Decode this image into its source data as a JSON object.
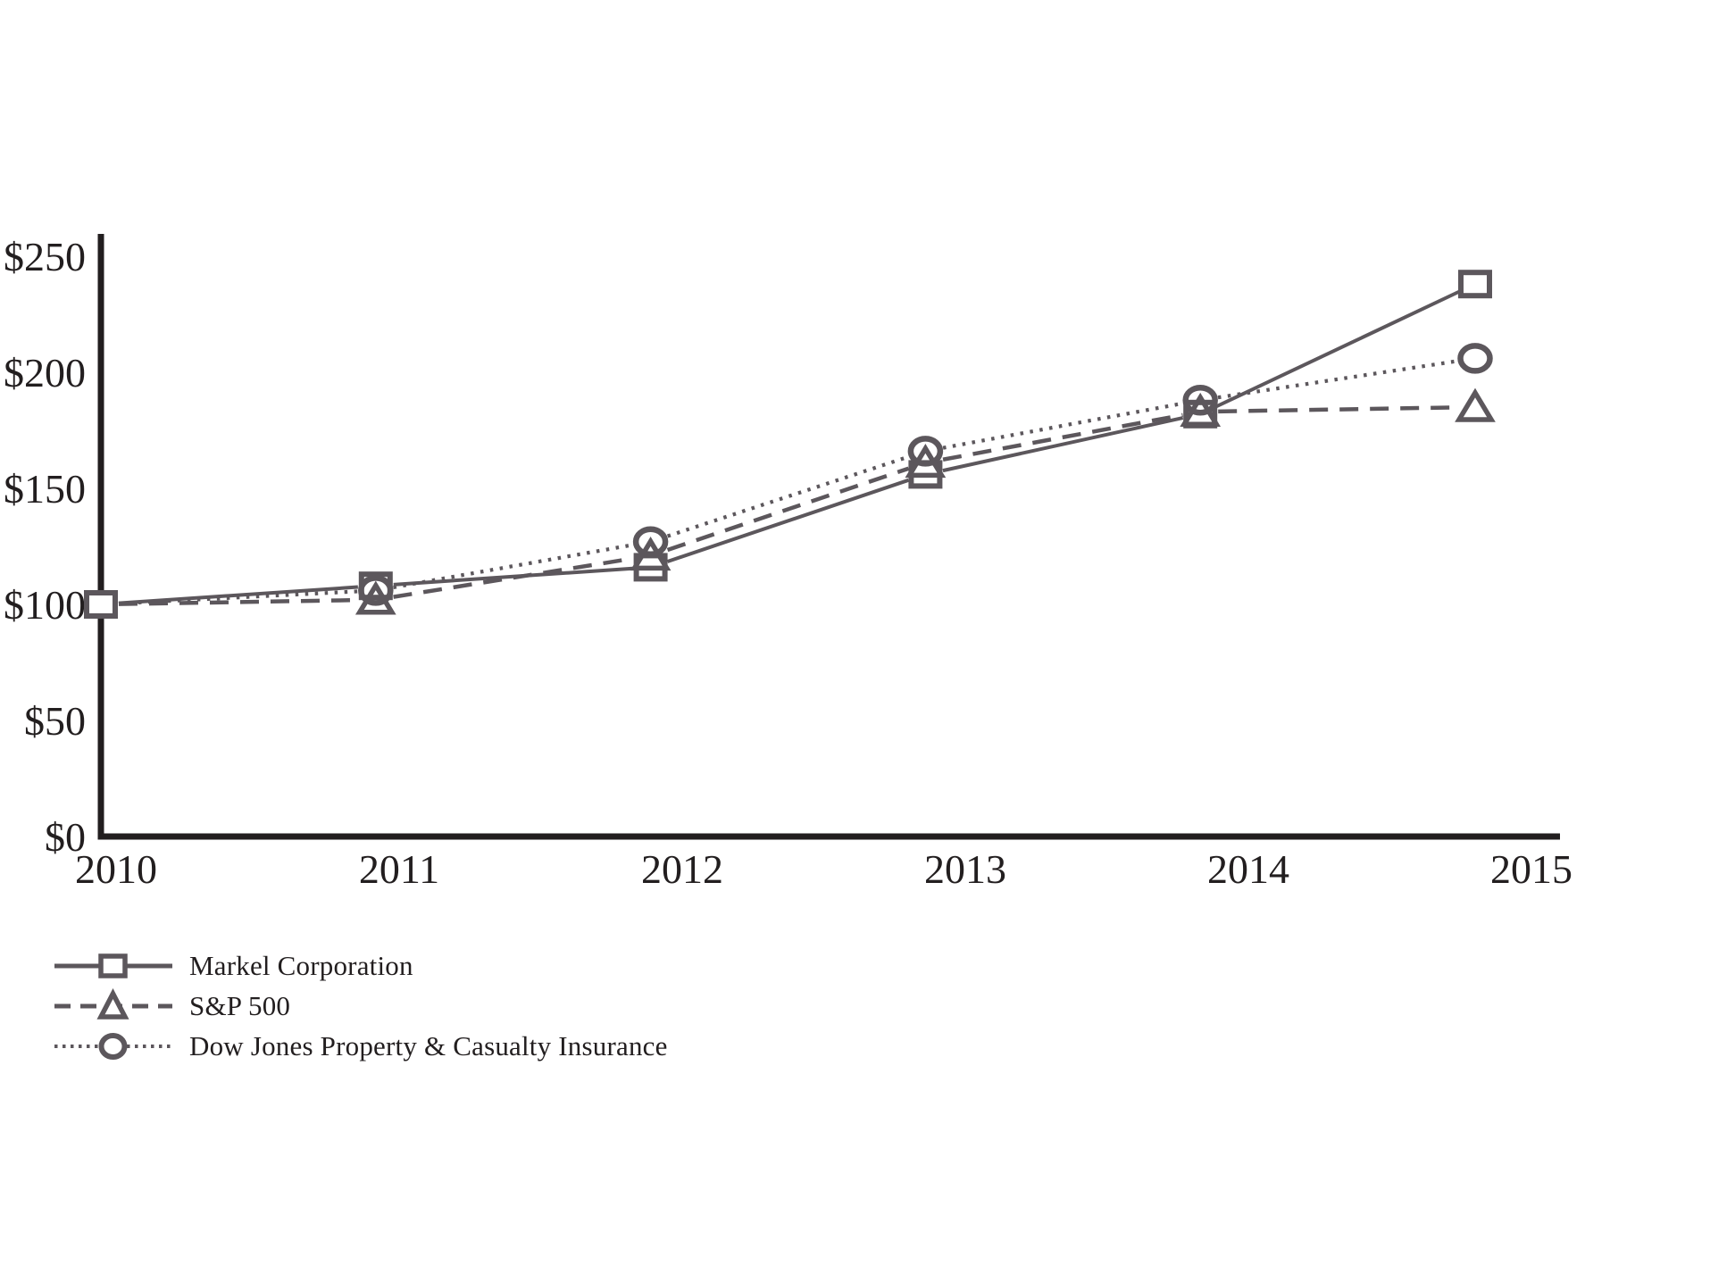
{
  "chart_data": {
    "type": "line",
    "title": "",
    "categories": [
      "2010",
      "2011",
      "2012",
      "2013",
      "2014",
      "2015"
    ],
    "x": [
      2010,
      2011,
      2012,
      2013,
      2014,
      2015
    ],
    "series": [
      {
        "name": "Markel Corporation",
        "marker": "square",
        "line": "solid",
        "values": [
          100,
          108,
          116,
          156,
          182,
          238
        ]
      },
      {
        "name": "S&P 500",
        "marker": "triangle",
        "line": "dashed",
        "values": [
          100,
          102,
          121,
          161,
          183,
          185
        ]
      },
      {
        "name": "Dow Jones Property & Casualty Insurance",
        "marker": "circle",
        "line": "dotted",
        "values": [
          100,
          106,
          127,
          166,
          188,
          206
        ]
      }
    ],
    "xlabel": "",
    "ylabel": "",
    "ylim": [
      0,
      250
    ],
    "yticks": [
      0,
      50,
      100,
      150,
      200,
      250
    ],
    "ytick_labels": [
      "$0",
      "$50",
      "$100",
      "$150",
      "$200",
      "$250"
    ],
    "grid": false,
    "legend_position": "bottom-left",
    "colors": {
      "series": "#5c575c",
      "axis": "#221e1f",
      "text": "#221e1f",
      "background": "#ffffff"
    }
  }
}
